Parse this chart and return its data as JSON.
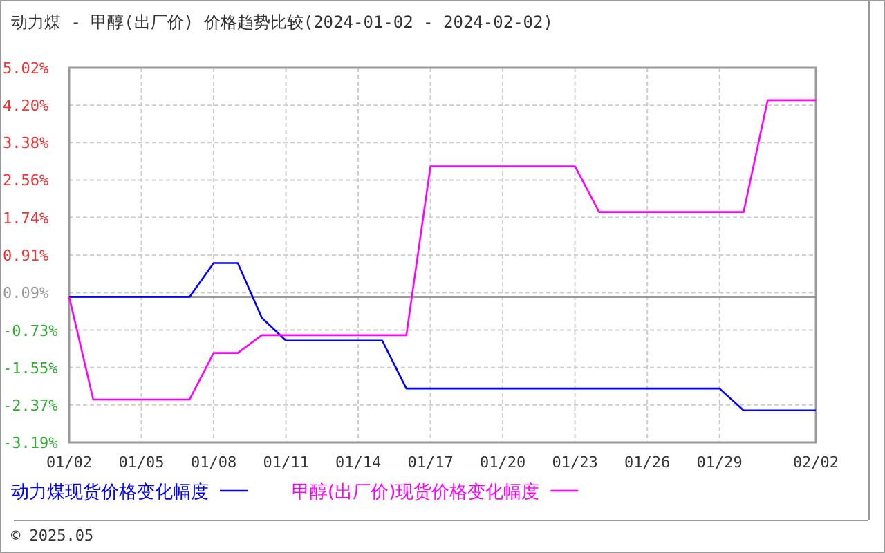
{
  "chart_data": {
    "type": "line",
    "title": "动力煤 - 甲醇(出厂价) 价格趋势比较(2024-01-02 - 2024-02-02)",
    "xlim": [
      "2024-01-02",
      "2024-02-02"
    ],
    "xticks": [
      {
        "value": "2024-01-02",
        "label": "01/02"
      },
      {
        "value": "2024-01-05",
        "label": "01/05"
      },
      {
        "value": "2024-01-08",
        "label": "01/08"
      },
      {
        "value": "2024-01-11",
        "label": "01/11"
      },
      {
        "value": "2024-01-14",
        "label": "01/14"
      },
      {
        "value": "2024-01-17",
        "label": "01/17"
      },
      {
        "value": "2024-01-20",
        "label": "01/20"
      },
      {
        "value": "2024-01-23",
        "label": "01/23"
      },
      {
        "value": "2024-01-26",
        "label": "01/26"
      },
      {
        "value": "2024-01-29",
        "label": "01/29"
      },
      {
        "value": "2024-02-02",
        "label": "02/02"
      }
    ],
    "ylim": [
      -3.19,
      5.02
    ],
    "yticks": [
      {
        "value": 5.02,
        "label": "5.02%"
      },
      {
        "value": 4.2,
        "label": "4.20%"
      },
      {
        "value": 3.38,
        "label": "3.38%"
      },
      {
        "value": 2.56,
        "label": "2.56%"
      },
      {
        "value": 1.74,
        "label": "1.74%"
      },
      {
        "value": 0.91,
        "label": "0.91%"
      },
      {
        "value": 0.09,
        "label": "0.09%"
      },
      {
        "value": -0.73,
        "label": "-0.73%"
      },
      {
        "value": -1.55,
        "label": "-1.55%"
      },
      {
        "value": -2.37,
        "label": "-2.37%"
      },
      {
        "value": -3.19,
        "label": "-3.19%"
      }
    ],
    "grid": true,
    "legend": "bottom",
    "marker": "none",
    "line_style": "solid",
    "ref_lines": [
      {
        "axis": "y",
        "value": 0,
        "color": "#999999"
      }
    ],
    "annotations": [
      "© 2025.05"
    ],
    "series": [
      {
        "name": "动力煤现货价格变化幅度",
        "color": "#0000ff",
        "x": [
          "2024-01-02",
          "2024-01-07",
          "2024-01-08",
          "2024-01-09",
          "2024-01-10",
          "2024-01-11",
          "2024-01-15",
          "2024-01-16",
          "2024-01-29",
          "2024-01-30",
          "2024-02-02"
        ],
        "values": [
          0,
          0,
          0.74,
          0.74,
          -0.46,
          -0.96,
          -0.96,
          -2.01,
          -2.01,
          -2.49,
          -2.49
        ]
      },
      {
        "name": "甲醇(出厂价)现货价格变化幅度",
        "color": "#ff00ff",
        "x": [
          "2024-01-02",
          "2024-01-03",
          "2024-01-07",
          "2024-01-08",
          "2024-01-09",
          "2024-01-10",
          "2024-01-16",
          "2024-01-17",
          "2024-01-23",
          "2024-01-24",
          "2024-01-30",
          "2024-01-31",
          "2024-02-02"
        ],
        "values": [
          0,
          -2.25,
          -2.25,
          -1.23,
          -1.23,
          -0.84,
          -0.84,
          2.86,
          2.86,
          1.86,
          1.86,
          4.31,
          4.31
        ]
      }
    ]
  }
}
